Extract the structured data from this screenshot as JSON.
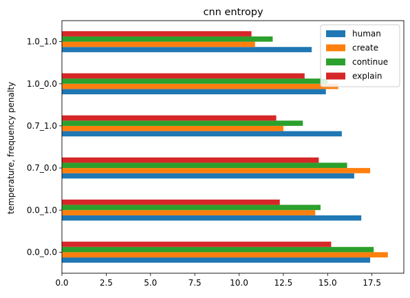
{
  "chart_data": {
    "type": "bar",
    "orientation": "horizontal",
    "title": "cnn entropy",
    "xlabel": "",
    "ylabel": "temperature, frequency penalty",
    "categories": [
      "0.0_0.0",
      "0.0_1.0",
      "0.7_0.0",
      "0.7_1.0",
      "1.0_0.0",
      "1.0_1.0"
    ],
    "xlim": [
      0,
      19.3
    ],
    "xticks": [
      0.0,
      2.5,
      5.0,
      7.5,
      10.0,
      12.5,
      15.0,
      17.5
    ],
    "xtick_labels": [
      "0.0",
      "2.5",
      "5.0",
      "7.5",
      "10.0",
      "12.5",
      "15.0",
      "17.5"
    ],
    "grid": false,
    "legend_position": "top-right",
    "series": [
      {
        "name": "human",
        "color": "#1f77b4",
        "values": [
          17.4,
          16.9,
          16.5,
          15.8,
          14.9,
          14.1
        ]
      },
      {
        "name": "create",
        "color": "#ff7f0e",
        "values": [
          18.4,
          14.3,
          17.4,
          12.5,
          15.6,
          10.9
        ]
      },
      {
        "name": "continue",
        "color": "#2ca02c",
        "values": [
          17.6,
          14.6,
          16.1,
          13.6,
          15.0,
          11.9
        ]
      },
      {
        "name": "explain",
        "color": "#d62728",
        "values": [
          15.2,
          12.3,
          14.5,
          12.1,
          13.7,
          10.7
        ]
      }
    ]
  }
}
